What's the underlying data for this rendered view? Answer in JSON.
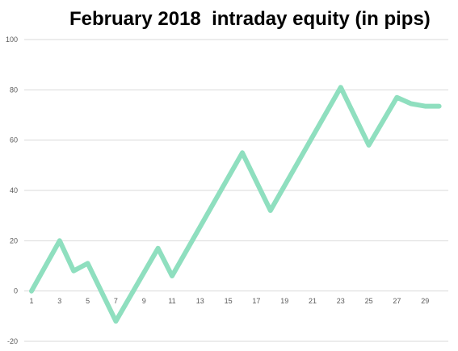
{
  "chart_data": {
    "type": "line",
    "title": "February 2018  intraday equity (in pips)",
    "xlabel": "",
    "ylabel": "",
    "ylim": [
      -20,
      100
    ],
    "yticks": [
      -20,
      0,
      20,
      40,
      60,
      80,
      100
    ],
    "x_tick_labels": [
      "1",
      "3",
      "5",
      "7",
      "9",
      "11",
      "13",
      "15",
      "17",
      "19",
      "21",
      "23",
      "25",
      "27",
      "29"
    ],
    "grid": true,
    "legend": "none",
    "line_color": "#8fdfbf",
    "series": [
      {
        "points": [
          {
            "x": 1,
            "y": 0
          },
          {
            "x": 3,
            "y": 20
          },
          {
            "x": 4,
            "y": 8
          },
          {
            "x": 5,
            "y": 11
          },
          {
            "x": 7,
            "y": -12
          },
          {
            "x": 10,
            "y": 17
          },
          {
            "x": 11,
            "y": 6
          },
          {
            "x": 16,
            "y": 55
          },
          {
            "x": 18,
            "y": 32
          },
          {
            "x": 23,
            "y": 81
          },
          {
            "x": 25,
            "y": 58
          },
          {
            "x": 27,
            "y": 77
          },
          {
            "x": 28,
            "y": 74.5
          },
          {
            "x": 29,
            "y": 73.5
          },
          {
            "x": 30,
            "y": 73.5
          }
        ]
      }
    ]
  }
}
